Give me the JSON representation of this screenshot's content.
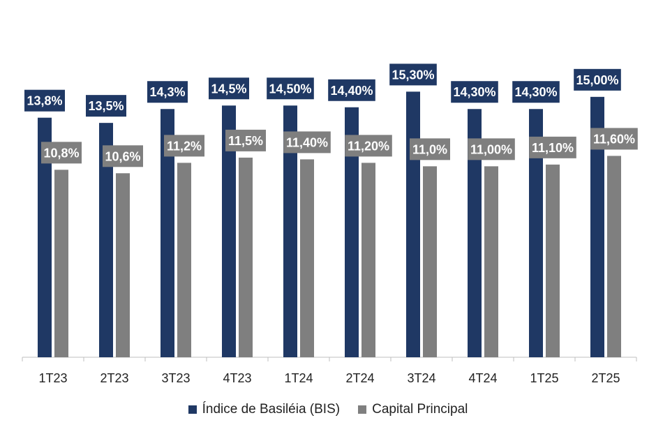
{
  "chart_data": {
    "type": "bar",
    "categories": [
      "1T23",
      "2T23",
      "3T23",
      "4T23",
      "1T24",
      "2T24",
      "3T24",
      "4T24",
      "1T25",
      "2T25"
    ],
    "series": [
      {
        "name": "Índice de Basiléia (BIS)",
        "color": "#1F3864",
        "values": [
          13.8,
          13.5,
          14.3,
          14.5,
          14.5,
          14.4,
          15.3,
          14.3,
          14.3,
          15.0
        ],
        "labels": [
          "13,8%",
          "13,5%",
          "14,3%",
          "14,5%",
          "14,50%",
          "14,40%",
          "15,30%",
          "14,30%",
          "14,30%",
          "15,00%"
        ]
      },
      {
        "name": "Capital Principal",
        "color": "#7F7F7F",
        "values": [
          10.8,
          10.6,
          11.2,
          11.5,
          11.4,
          11.2,
          11.0,
          11.0,
          11.1,
          11.6
        ],
        "labels": [
          "10,8%",
          "10,6%",
          "11,2%",
          "11,5%",
          "11,40%",
          "11,20%",
          "11,0%",
          "11,00%",
          "11,10%",
          "11,60%"
        ]
      }
    ],
    "ylim": [
      0,
      20.5
    ],
    "grid": false,
    "legend_position": "bottom",
    "title": "",
    "xlabel": "",
    "ylabel": ""
  }
}
